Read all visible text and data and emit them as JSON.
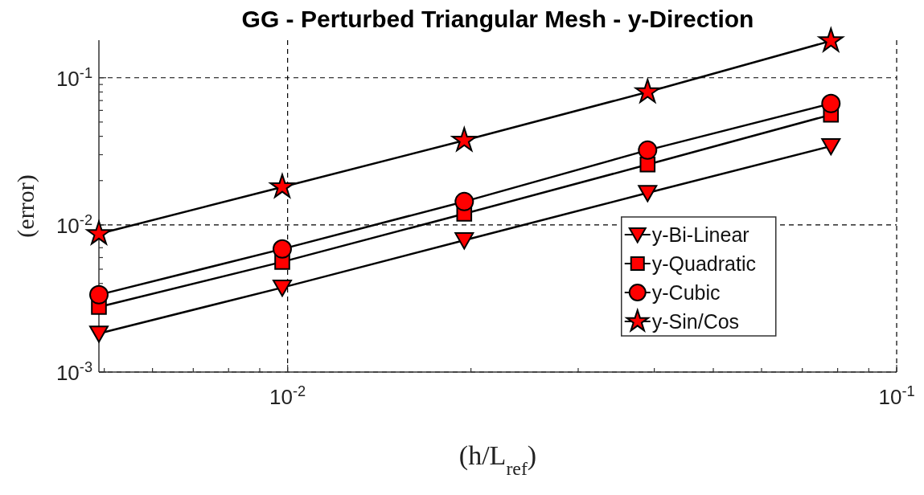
{
  "chart_data": {
    "type": "line",
    "title": "GG - Perturbed Triangular Mesh - y-Direction",
    "xlabel": "(h/L$_{ref}$)",
    "ylabel": "(error)",
    "log": "xy",
    "grid": true,
    "legend": "right",
    "line_style": "solid",
    "x": [
      0.0049,
      0.0098,
      0.0195,
      0.039,
      0.078
    ],
    "xlim": [
      0.0049,
      0.1
    ],
    "ylim": [
      0.001,
      0.18
    ],
    "xticks": [
      {
        "value": 0.005,
        "label": null
      },
      {
        "value": 0.006,
        "label": null
      },
      {
        "value": 0.007,
        "label": null
      },
      {
        "value": 0.008,
        "label": null
      },
      {
        "value": 0.009,
        "label": null
      },
      {
        "value": 0.01,
        "label": "10$^{-2}$"
      },
      {
        "value": 0.02,
        "label": null
      },
      {
        "value": 0.03,
        "label": null
      },
      {
        "value": 0.04,
        "label": null
      },
      {
        "value": 0.05,
        "label": null
      },
      {
        "value": 0.06,
        "label": null
      },
      {
        "value": 0.07,
        "label": null
      },
      {
        "value": 0.08,
        "label": null
      },
      {
        "value": 0.09,
        "label": null
      },
      {
        "value": 0.1,
        "label": "10$^{-1}$"
      }
    ],
    "yticks": [
      {
        "value": 0.001,
        "label": "10$^{-3}$"
      },
      {
        "value": 0.002,
        "label": null
      },
      {
        "value": 0.003,
        "label": null
      },
      {
        "value": 0.004,
        "label": null
      },
      {
        "value": 0.005,
        "label": null
      },
      {
        "value": 0.006,
        "label": null
      },
      {
        "value": 0.007,
        "label": null
      },
      {
        "value": 0.008,
        "label": null
      },
      {
        "value": 0.009,
        "label": null
      },
      {
        "value": 0.01,
        "label": "10$^{-2}$"
      },
      {
        "value": 0.02,
        "label": null
      },
      {
        "value": 0.03,
        "label": null
      },
      {
        "value": 0.04,
        "label": null
      },
      {
        "value": 0.05,
        "label": null
      },
      {
        "value": 0.06,
        "label": null
      },
      {
        "value": 0.07,
        "label": null
      },
      {
        "value": 0.08,
        "label": null
      },
      {
        "value": 0.09,
        "label": null
      },
      {
        "value": 0.1,
        "label": "10$^{-1}$"
      }
    ],
    "series": [
      {
        "name": "y-Bi-Linear",
        "color": "#ff0000",
        "marker": "triangle",
        "values": [
          0.00183,
          0.00375,
          0.00787,
          0.0165,
          0.0343
        ]
      },
      {
        "name": "y-Quadratic",
        "color": "#ff0000",
        "marker": "square",
        "values": [
          0.00277,
          0.00561,
          0.0119,
          0.0257,
          0.0561
        ]
      },
      {
        "name": "y-Cubic",
        "color": "#ff0000",
        "marker": "circle",
        "values": [
          0.00335,
          0.00686,
          0.0144,
          0.0322,
          0.0668
        ]
      },
      {
        "name": "y-Sin/Cos",
        "color": "#ff0000",
        "marker": "star",
        "values": [
          0.0087,
          0.0181,
          0.0375,
          0.08,
          0.178
        ]
      }
    ]
  }
}
